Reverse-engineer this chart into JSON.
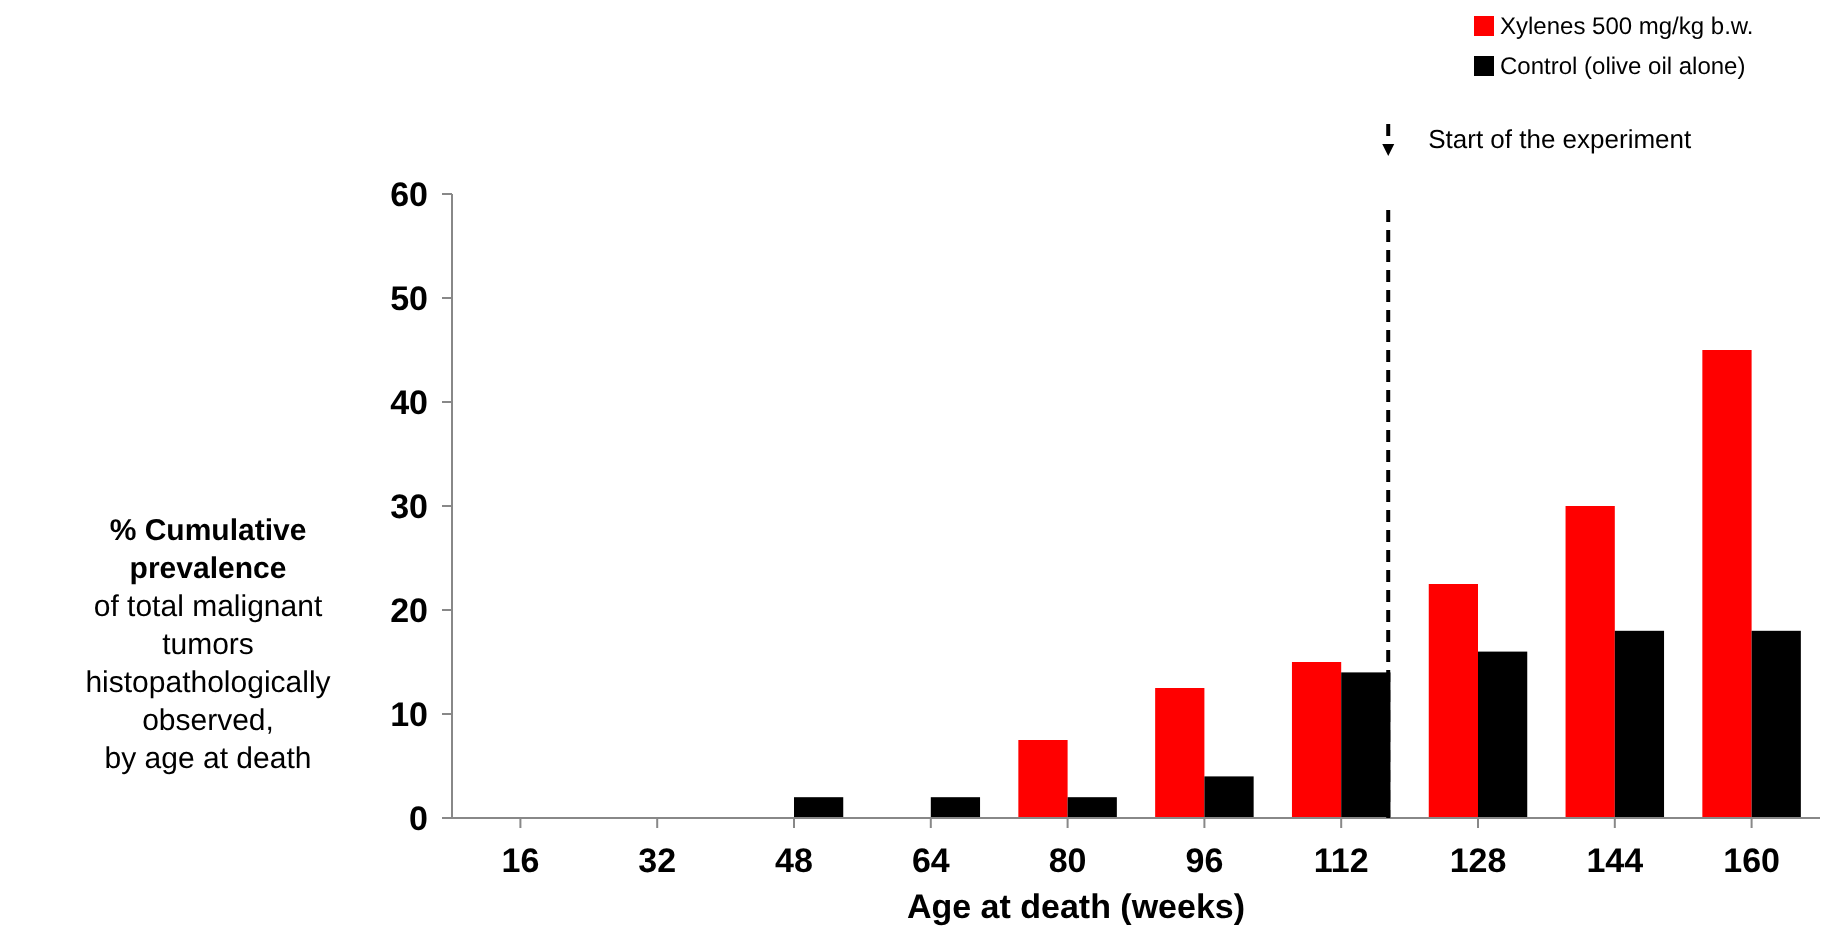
{
  "chart_data": {
    "type": "bar",
    "xlabel": "Age at death (weeks)",
    "ylabel": "% Cumulative\nprevalence\nof total malignant\ntumors\nhistopathologically\nobserved,\nby age at death",
    "x": [
      16,
      32,
      48,
      64,
      80,
      96,
      112,
      128,
      144,
      160
    ],
    "xlim": [
      8,
      168
    ],
    "xticks": [
      16,
      32,
      48,
      64,
      80,
      96,
      112,
      128,
      144,
      160
    ],
    "ylim": [
      0,
      60
    ],
    "yticks": [
      0,
      10,
      20,
      30,
      40,
      50,
      60
    ],
    "series": [
      {
        "name": "Xylenes 500 mg/kg b.w.",
        "color": "#ff0000",
        "values": [
          0,
          0,
          0,
          0,
          7.5,
          12.5,
          15,
          22.5,
          30,
          45
        ]
      },
      {
        "name": "Control (olive oil alone)",
        "color": "#000000",
        "values": [
          0,
          0,
          2,
          2,
          2,
          4,
          14,
          16,
          18,
          18
        ]
      }
    ],
    "ref_lines": [
      {
        "axis": "x",
        "value": 117.5,
        "label": "Start of the experiment",
        "line_style": "dashed",
        "color": "#000000"
      }
    ],
    "grid": false,
    "legend": "top right"
  }
}
